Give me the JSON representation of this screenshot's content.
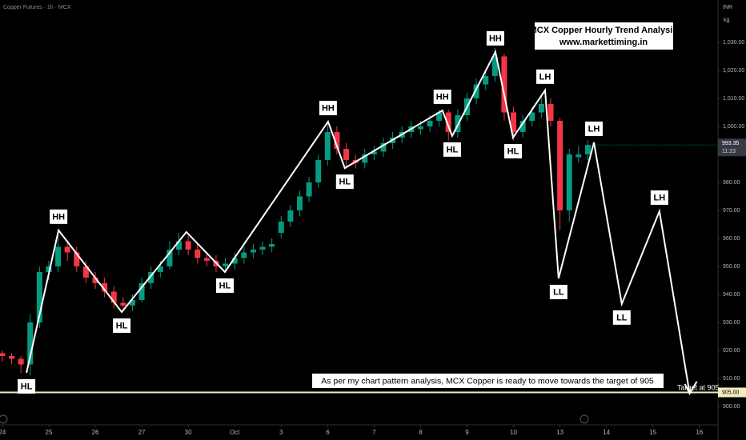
{
  "chart_data": {
    "type": "candlestick",
    "title": "Copper Futures · 1h · MCX",
    "currency": "INR",
    "unit": "kg",
    "up_color": "#089981",
    "down_color": "#f23645",
    "x": [
      0.0,
      0.2,
      0.4,
      0.6,
      0.8,
      1.0,
      1.2,
      1.4,
      1.6,
      1.8,
      2.0,
      2.2,
      2.4,
      2.6,
      2.8,
      3.0,
      3.2,
      3.4,
      3.6,
      3.8,
      4.0,
      4.2,
      4.4,
      4.6,
      4.8,
      5.0,
      5.2,
      5.4,
      5.6,
      5.8,
      6.0,
      6.2,
      6.4,
      6.6,
      6.8,
      7.0,
      7.2,
      7.4,
      7.6,
      7.8,
      8.0,
      8.2,
      8.4,
      8.6,
      8.8,
      9.0,
      9.2,
      9.4,
      9.6,
      9.8,
      10.0,
      10.2,
      10.4,
      10.6,
      10.8,
      11.0,
      11.2,
      11.4,
      11.6,
      11.8,
      12.0,
      12.2,
      12.4,
      12.6
    ],
    "open": [
      919,
      918,
      917,
      915,
      930,
      948,
      950,
      957,
      955,
      950,
      946,
      944,
      941,
      937,
      936,
      938,
      944,
      948,
      950,
      956,
      959,
      956,
      953,
      952,
      950,
      951,
      953,
      955,
      956,
      957,
      962,
      966,
      970,
      975,
      980,
      988,
      998,
      992,
      988,
      987,
      990,
      991,
      994,
      996,
      998,
      999,
      1000,
      1002,
      1005,
      998,
      1004,
      1010,
      1015,
      1018,
      1025,
      1005,
      998,
      1002,
      1005,
      1008,
      1002,
      970,
      989,
      990
    ],
    "high": [
      920,
      919,
      918,
      933,
      950,
      952,
      962,
      959,
      957,
      952,
      948,
      946,
      943,
      939,
      940,
      946,
      950,
      952,
      959,
      962,
      961,
      958,
      955,
      954,
      953,
      955,
      957,
      958,
      959,
      960,
      968,
      972,
      977,
      982,
      990,
      1001,
      1000,
      994,
      990,
      992,
      993,
      996,
      998,
      1000,
      1002,
      1002,
      1004,
      1006,
      1006,
      1006,
      1012,
      1017,
      1020,
      1028,
      1026,
      1007,
      1004,
      1007,
      1011,
      1010,
      1003,
      992,
      993,
      995
    ],
    "low": [
      916,
      915,
      912,
      911,
      928,
      945,
      948,
      952,
      948,
      944,
      942,
      939,
      935,
      934,
      934,
      937,
      942,
      946,
      949,
      954,
      954,
      951,
      950,
      948,
      948,
      949,
      951,
      953,
      954,
      955,
      960,
      964,
      968,
      973,
      978,
      986,
      990,
      985,
      985,
      985,
      988,
      989,
      992,
      994,
      996,
      997,
      998,
      1000,
      995,
      996,
      1002,
      1008,
      1013,
      1016,
      1002,
      995,
      996,
      1000,
      1003,
      1000,
      963,
      966,
      987,
      988
    ],
    "close": [
      918,
      917,
      915,
      930,
      948,
      950,
      957,
      955,
      950,
      946,
      944,
      941,
      937,
      936,
      938,
      944,
      948,
      950,
      956,
      959,
      956,
      953,
      952,
      950,
      951,
      953,
      955,
      956,
      957,
      958,
      966,
      970,
      975,
      980,
      988,
      998,
      992,
      988,
      987,
      990,
      991,
      994,
      996,
      998,
      1000,
      1000,
      1002,
      1005,
      998,
      1004,
      1010,
      1015,
      1018,
      1025,
      1005,
      998,
      1002,
      1005,
      1008,
      1002,
      970,
      990,
      990,
      993.35
    ],
    "xlim": [
      -0.05,
      15.4
    ],
    "xticks": [
      {
        "value": 0,
        "label": "24"
      },
      {
        "value": 1,
        "label": "25"
      },
      {
        "value": 2,
        "label": "26"
      },
      {
        "value": 3,
        "label": "27"
      },
      {
        "value": 4,
        "label": "30"
      },
      {
        "value": 5,
        "label": "Oct"
      },
      {
        "value": 6,
        "label": "3"
      },
      {
        "value": 7,
        "label": "6"
      },
      {
        "value": 8,
        "label": "7"
      },
      {
        "value": 9,
        "label": "8"
      },
      {
        "value": 10,
        "label": "9"
      },
      {
        "value": 11,
        "label": "10"
      },
      {
        "value": 12,
        "label": "13"
      },
      {
        "value": 13,
        "label": "14"
      },
      {
        "value": 14,
        "label": "15"
      },
      {
        "value": 15,
        "label": "16"
      }
    ],
    "ylim": [
      894,
      1045
    ],
    "yticks": [
      {
        "value": 900,
        "label": "900.00"
      },
      {
        "value": 910,
        "label": "910.00"
      },
      {
        "value": 920,
        "label": "920.00"
      },
      {
        "value": 930,
        "label": "930.00"
      },
      {
        "value": 940,
        "label": "940.00"
      },
      {
        "value": 950,
        "label": "950.00"
      },
      {
        "value": 960,
        "label": "960.00"
      },
      {
        "value": 970,
        "label": "970.00"
      },
      {
        "value": 980,
        "label": "980.00"
      },
      {
        "value": 1000,
        "label": "1,000.00"
      },
      {
        "value": 1010,
        "label": "1,010.00"
      },
      {
        "value": 1020,
        "label": "1,020.00"
      },
      {
        "value": 1030,
        "label": "1,030.00"
      }
    ],
    "last_price": 993.35,
    "countdown": "11:23",
    "pattern": {
      "color": "#ffffff",
      "x": [
        0.52,
        1.21,
        2.57,
        3.96,
        4.79,
        7.01,
        7.37,
        9.47,
        9.68,
        10.61,
        10.99,
        11.68,
        11.97,
        12.73,
        13.33,
        14.14,
        14.79
      ],
      "values": [
        912.0,
        962.9,
        933.7,
        962.3,
        948.0,
        1001.7,
        985.1,
        1005.7,
        996.6,
        1026.6,
        996.0,
        1012.9,
        945.7,
        994.3,
        936.6,
        969.7,
        904.6
      ],
      "labels": [
        "HL",
        "HH",
        "HL",
        null,
        "HL",
        "HH",
        "HL",
        "HH",
        "HL",
        "HH",
        "HL",
        "LH",
        "LL",
        "LH",
        "LL",
        "LH",
        null
      ]
    },
    "target": {
      "value": {
        "value": 905,
        "label": "905.00"
      },
      "text": "Target at 905",
      "color": "#f3ecc0"
    },
    "annotations": {
      "box_title": "MCX Copper Hourly Trend Analysis",
      "box_subtitle": "www.markettiming.in",
      "note": "As per my chart pattern analysis, MCX Copper is ready to move towards the target of 905"
    }
  }
}
